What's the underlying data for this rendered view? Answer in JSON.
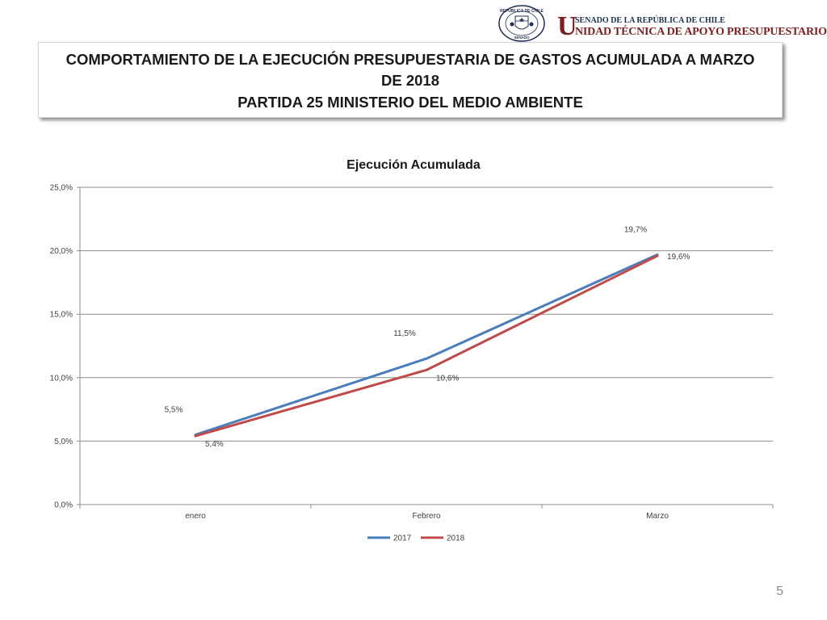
{
  "header": {
    "seal_text_top": "REPÚBLICA DE CHILE",
    "seal_text_bottom": "SENADO",
    "brand_initial": "U",
    "brand_line1": "SENADO DE LA REPÚBLICA DE CHILE",
    "brand_line2": "NIDAD TÉCNICA DE APOYO PRESUPUESTARIO",
    "brand_color": "#7a1f1f",
    "seal_color": "#1f2d50"
  },
  "title": {
    "line1": "COMPORTAMIENTO DE LA EJECUCIÓN PRESUPUESTARIA DE GASTOS ACUMULADA A MARZO",
    "line2": "DE 2018",
    "line3": "PARTIDA 25 MINISTERIO DEL MEDIO AMBIENTE"
  },
  "chart_data": {
    "type": "line",
    "title": "Ejecución Acumulada",
    "xlabel": "",
    "ylabel": "",
    "categories": [
      "enero",
      "Febrero",
      "Marzo"
    ],
    "ylim": [
      0,
      25
    ],
    "yticks": [
      0,
      5,
      10,
      15,
      20,
      25
    ],
    "ytick_labels": [
      "0,0%",
      "5,0%",
      "10,0%",
      "15,0%",
      "20,0%",
      "25,0%"
    ],
    "grid": true,
    "legend_position": "bottom",
    "series": [
      {
        "name": "2017",
        "color": "#4a7ebb",
        "values": [
          5.5,
          11.5,
          19.7
        ],
        "labels": [
          "5,5%",
          "11,5%",
          "19,7%"
        ]
      },
      {
        "name": "2018",
        "color": "#be4b48",
        "values": [
          5.4,
          10.6,
          19.6
        ],
        "labels": [
          "5,4%",
          "10,6%",
          "19,6%"
        ]
      }
    ]
  },
  "footer": {
    "page_number": "5"
  }
}
